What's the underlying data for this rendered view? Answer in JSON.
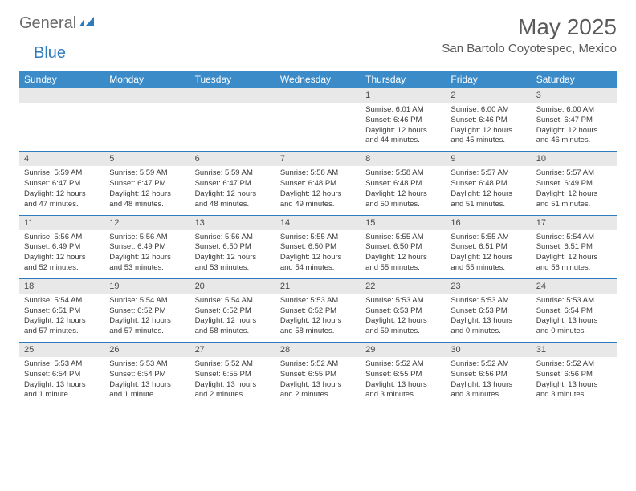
{
  "logo": {
    "part1": "General",
    "part2": "Blue"
  },
  "title": "May 2025",
  "location": "San Bartolo Coyotespec, Mexico",
  "colors": {
    "header_bg": "#3b8bc8",
    "header_text": "#ffffff",
    "daynum_bg": "#e8e8e8",
    "text": "#3a3a3a",
    "border": "#2f7bbf"
  },
  "day_names": [
    "Sunday",
    "Monday",
    "Tuesday",
    "Wednesday",
    "Thursday",
    "Friday",
    "Saturday"
  ],
  "weeks": [
    [
      null,
      null,
      null,
      null,
      {
        "n": "1",
        "sr": "6:01 AM",
        "ss": "6:46 PM",
        "dl": "12 hours and 44 minutes."
      },
      {
        "n": "2",
        "sr": "6:00 AM",
        "ss": "6:46 PM",
        "dl": "12 hours and 45 minutes."
      },
      {
        "n": "3",
        "sr": "6:00 AM",
        "ss": "6:47 PM",
        "dl": "12 hours and 46 minutes."
      }
    ],
    [
      {
        "n": "4",
        "sr": "5:59 AM",
        "ss": "6:47 PM",
        "dl": "12 hours and 47 minutes."
      },
      {
        "n": "5",
        "sr": "5:59 AM",
        "ss": "6:47 PM",
        "dl": "12 hours and 48 minutes."
      },
      {
        "n": "6",
        "sr": "5:59 AM",
        "ss": "6:47 PM",
        "dl": "12 hours and 48 minutes."
      },
      {
        "n": "7",
        "sr": "5:58 AM",
        "ss": "6:48 PM",
        "dl": "12 hours and 49 minutes."
      },
      {
        "n": "8",
        "sr": "5:58 AM",
        "ss": "6:48 PM",
        "dl": "12 hours and 50 minutes."
      },
      {
        "n": "9",
        "sr": "5:57 AM",
        "ss": "6:48 PM",
        "dl": "12 hours and 51 minutes."
      },
      {
        "n": "10",
        "sr": "5:57 AM",
        "ss": "6:49 PM",
        "dl": "12 hours and 51 minutes."
      }
    ],
    [
      {
        "n": "11",
        "sr": "5:56 AM",
        "ss": "6:49 PM",
        "dl": "12 hours and 52 minutes."
      },
      {
        "n": "12",
        "sr": "5:56 AM",
        "ss": "6:49 PM",
        "dl": "12 hours and 53 minutes."
      },
      {
        "n": "13",
        "sr": "5:56 AM",
        "ss": "6:50 PM",
        "dl": "12 hours and 53 minutes."
      },
      {
        "n": "14",
        "sr": "5:55 AM",
        "ss": "6:50 PM",
        "dl": "12 hours and 54 minutes."
      },
      {
        "n": "15",
        "sr": "5:55 AM",
        "ss": "6:50 PM",
        "dl": "12 hours and 55 minutes."
      },
      {
        "n": "16",
        "sr": "5:55 AM",
        "ss": "6:51 PM",
        "dl": "12 hours and 55 minutes."
      },
      {
        "n": "17",
        "sr": "5:54 AM",
        "ss": "6:51 PM",
        "dl": "12 hours and 56 minutes."
      }
    ],
    [
      {
        "n": "18",
        "sr": "5:54 AM",
        "ss": "6:51 PM",
        "dl": "12 hours and 57 minutes."
      },
      {
        "n": "19",
        "sr": "5:54 AM",
        "ss": "6:52 PM",
        "dl": "12 hours and 57 minutes."
      },
      {
        "n": "20",
        "sr": "5:54 AM",
        "ss": "6:52 PM",
        "dl": "12 hours and 58 minutes."
      },
      {
        "n": "21",
        "sr": "5:53 AM",
        "ss": "6:52 PM",
        "dl": "12 hours and 58 minutes."
      },
      {
        "n": "22",
        "sr": "5:53 AM",
        "ss": "6:53 PM",
        "dl": "12 hours and 59 minutes."
      },
      {
        "n": "23",
        "sr": "5:53 AM",
        "ss": "6:53 PM",
        "dl": "13 hours and 0 minutes."
      },
      {
        "n": "24",
        "sr": "5:53 AM",
        "ss": "6:54 PM",
        "dl": "13 hours and 0 minutes."
      }
    ],
    [
      {
        "n": "25",
        "sr": "5:53 AM",
        "ss": "6:54 PM",
        "dl": "13 hours and 1 minute."
      },
      {
        "n": "26",
        "sr": "5:53 AM",
        "ss": "6:54 PM",
        "dl": "13 hours and 1 minute."
      },
      {
        "n": "27",
        "sr": "5:52 AM",
        "ss": "6:55 PM",
        "dl": "13 hours and 2 minutes."
      },
      {
        "n": "28",
        "sr": "5:52 AM",
        "ss": "6:55 PM",
        "dl": "13 hours and 2 minutes."
      },
      {
        "n": "29",
        "sr": "5:52 AM",
        "ss": "6:55 PM",
        "dl": "13 hours and 3 minutes."
      },
      {
        "n": "30",
        "sr": "5:52 AM",
        "ss": "6:56 PM",
        "dl": "13 hours and 3 minutes."
      },
      {
        "n": "31",
        "sr": "5:52 AM",
        "ss": "6:56 PM",
        "dl": "13 hours and 3 minutes."
      }
    ]
  ],
  "labels": {
    "sunrise": "Sunrise:",
    "sunset": "Sunset:",
    "daylight": "Daylight:"
  }
}
